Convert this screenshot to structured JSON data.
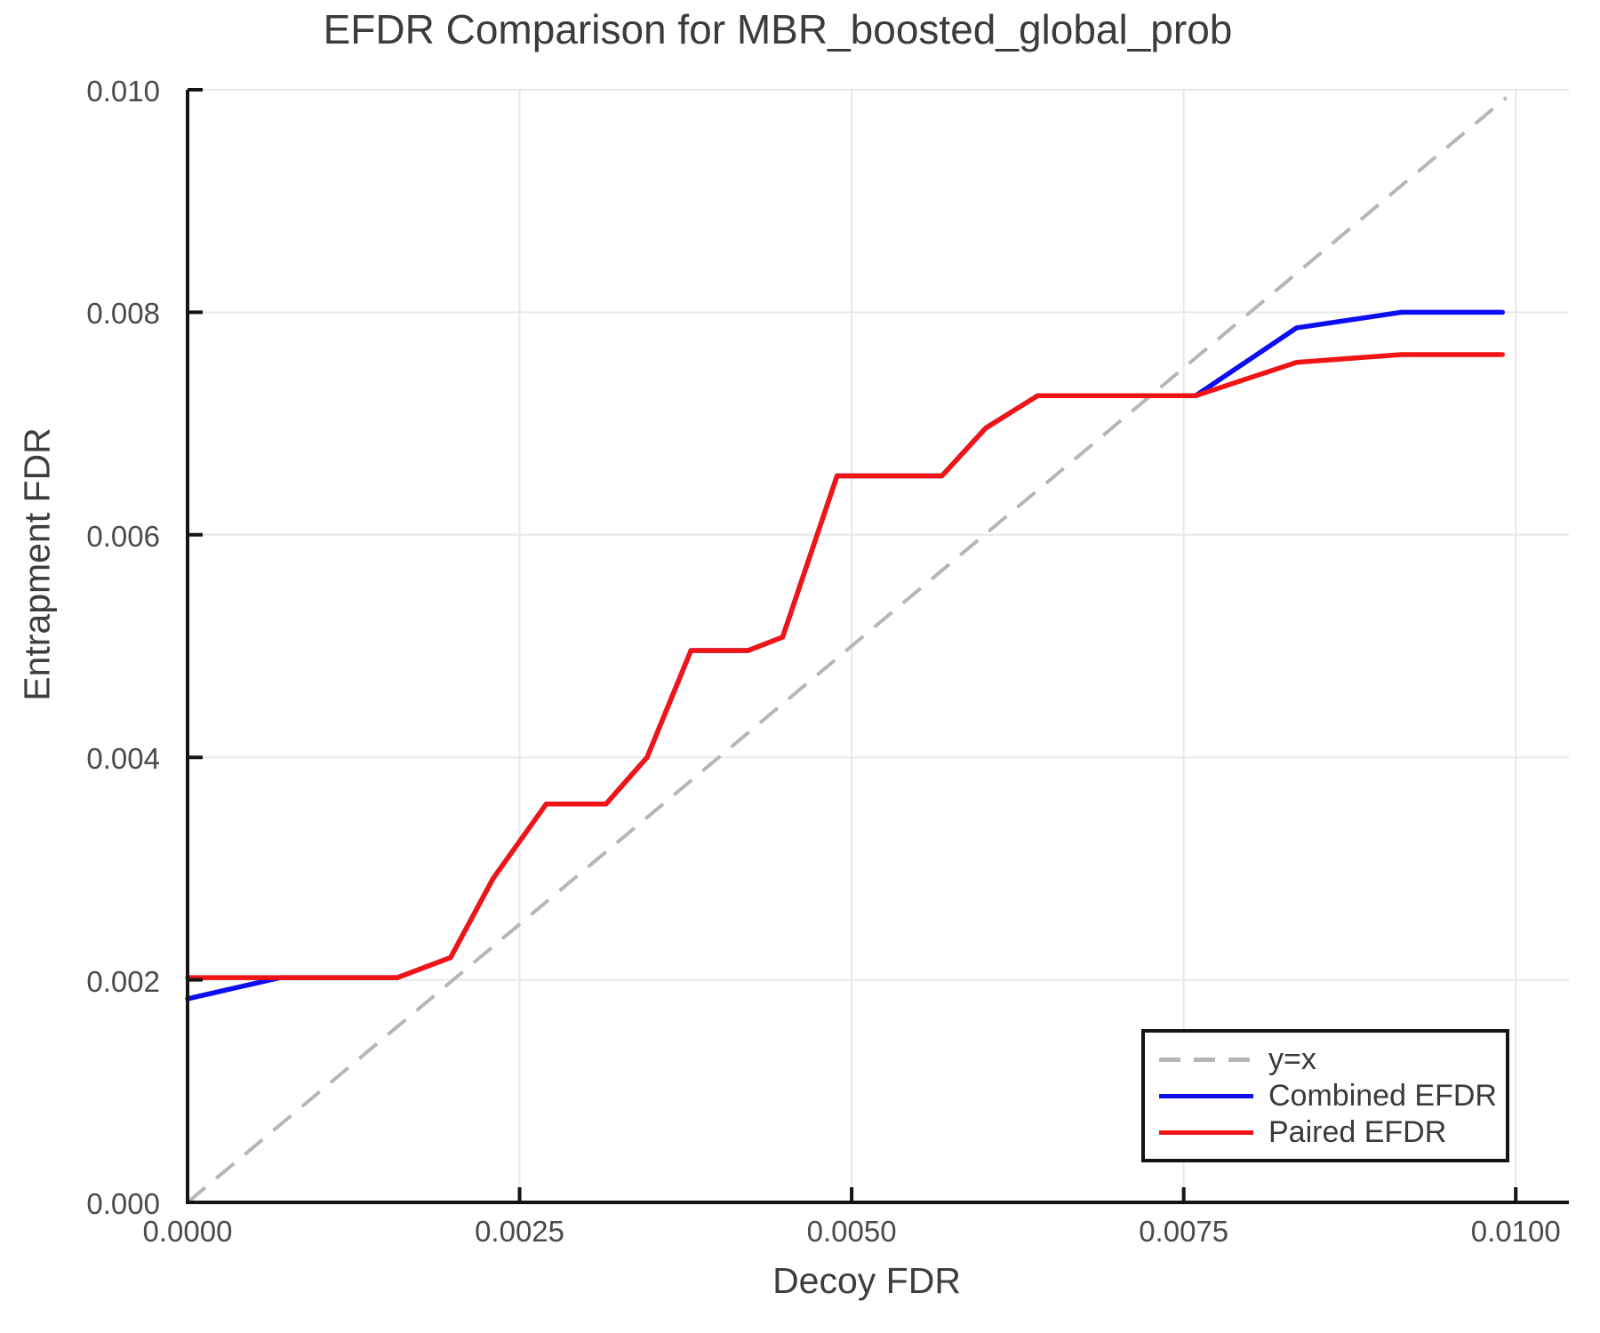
{
  "title": "EFDR Comparison for MBR_boosted_global_prob",
  "chart_data": {
    "type": "line",
    "title": "EFDR Comparison for MBR_boosted_global_prob",
    "xlabel": "Decoy FDR",
    "ylabel": "Entrapment FDR",
    "xlim": [
      0,
      0.0104
    ],
    "ylim": [
      0,
      0.01
    ],
    "grid": true,
    "background": "#ffffff",
    "grid_color": "#e8e8e8",
    "spine_color": "#141414",
    "xticks": {
      "values": [
        0.0,
        0.0025,
        0.005,
        0.0075,
        0.01
      ],
      "labels": [
        "0.0000",
        "0.0025",
        "0.0050",
        "0.0075",
        "0.0100"
      ]
    },
    "yticks": {
      "values": [
        0.0,
        0.002,
        0.004,
        0.006,
        0.008,
        0.01
      ],
      "labels": [
        "0.000",
        "0.002",
        "0.004",
        "0.006",
        "0.008",
        "0.010"
      ]
    },
    "legend": {
      "position": "lower right",
      "entries": [
        {
          "label": "y=x",
          "color": "#b6b6b6",
          "dashed": true
        },
        {
          "label": "Combined EFDR",
          "color": "#0d0df2",
          "dashed": false
        },
        {
          "label": "Paired EFDR",
          "color": "#f21414",
          "dashed": false
        }
      ]
    },
    "series": [
      {
        "name": "y=x",
        "color": "#b6b6b6",
        "dashed": true,
        "width": 4,
        "points": [
          [
            0,
            0
          ],
          [
            0.00993,
            0.00993
          ]
        ]
      },
      {
        "name": "Combined EFDR",
        "color": "#0d0df2",
        "dashed": false,
        "width": 5.5,
        "points": [
          [
            0,
            0.00183
          ],
          [
            0.0007,
            0.00202
          ],
          [
            0.00158,
            0.00202
          ],
          [
            0.00198,
            0.0022
          ],
          [
            0.0023,
            0.00291
          ],
          [
            0.0027,
            0.00358
          ],
          [
            0.00315,
            0.00358
          ],
          [
            0.00346,
            0.004
          ],
          [
            0.00379,
            0.00496
          ],
          [
            0.00422,
            0.00496
          ],
          [
            0.00448,
            0.00508
          ],
          [
            0.00489,
            0.00653
          ],
          [
            0.00568,
            0.00653
          ],
          [
            0.00601,
            0.00696
          ],
          [
            0.0064,
            0.00725
          ],
          [
            0.00759,
            0.00725
          ],
          [
            0.00835,
            0.00786
          ],
          [
            0.00914,
            0.008
          ],
          [
            0.0099,
            0.008
          ]
        ]
      },
      {
        "name": "Paired EFDR",
        "color": "#f21414",
        "dashed": false,
        "width": 5.5,
        "points": [
          [
            0,
            0.00202
          ],
          [
            0.00158,
            0.00202
          ],
          [
            0.00198,
            0.0022
          ],
          [
            0.0023,
            0.00291
          ],
          [
            0.0027,
            0.00358
          ],
          [
            0.00315,
            0.00358
          ],
          [
            0.00346,
            0.004
          ],
          [
            0.00379,
            0.00496
          ],
          [
            0.00422,
            0.00496
          ],
          [
            0.00448,
            0.00508
          ],
          [
            0.00489,
            0.00653
          ],
          [
            0.00568,
            0.00653
          ],
          [
            0.00601,
            0.00696
          ],
          [
            0.0064,
            0.00725
          ],
          [
            0.00759,
            0.00725
          ],
          [
            0.00835,
            0.00755
          ],
          [
            0.00914,
            0.00762
          ],
          [
            0.0099,
            0.00762
          ]
        ]
      }
    ]
  }
}
